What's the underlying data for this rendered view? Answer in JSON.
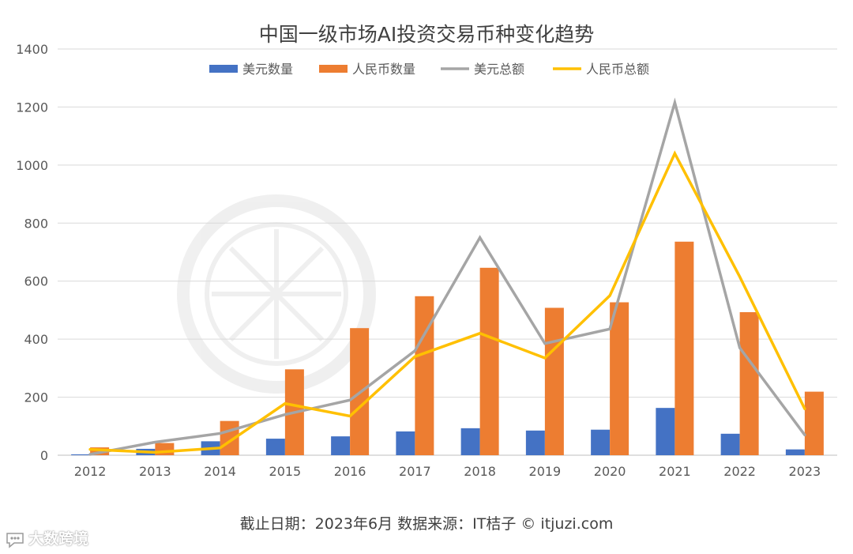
{
  "chart_data": {
    "type": "bar",
    "title": "中国一级市场AI投资交易币种变化趋势",
    "categories": [
      "2012",
      "2013",
      "2014",
      "2015",
      "2016",
      "2017",
      "2018",
      "2019",
      "2020",
      "2021",
      "2022",
      "2023"
    ],
    "series": [
      {
        "name": "美元数量",
        "type": "bar",
        "color": "#4472C4",
        "values": [
          3,
          22,
          48,
          57,
          65,
          82,
          93,
          85,
          88,
          163,
          74,
          20
        ]
      },
      {
        "name": "人民币数量",
        "type": "bar",
        "color": "#ED7D31",
        "values": [
          27,
          42,
          118,
          296,
          438,
          548,
          646,
          508,
          527,
          736,
          493,
          219
        ]
      },
      {
        "name": "美元总额",
        "type": "line",
        "color": "#A5A5A5",
        "values": [
          3,
          45,
          75,
          140,
          190,
          360,
          750,
          385,
          435,
          1215,
          370,
          70
        ]
      },
      {
        "name": "人民币总额",
        "type": "line",
        "color": "#FFC000",
        "values": [
          20,
          10,
          25,
          178,
          135,
          340,
          420,
          335,
          550,
          1040,
          615,
          160
        ]
      }
    ],
    "ylim": [
      0,
      1400
    ],
    "yticks": [
      0,
      200,
      400,
      600,
      800,
      1000,
      1200,
      1400
    ],
    "grid": true,
    "legend": "top"
  },
  "footer": {
    "source_note": "截止日期：2023年6月    数据来源：IT桔子 © itjuzi.com"
  },
  "watermark": {
    "brand": "大数跨境",
    "logo_icon": "speech-bubble-icon"
  }
}
